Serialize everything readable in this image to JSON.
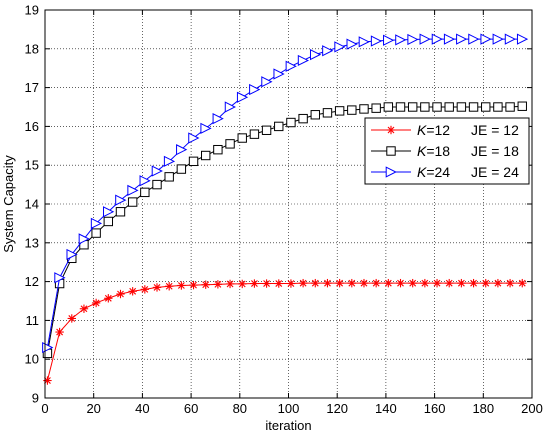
{
  "chart_data": {
    "type": "line",
    "title": "",
    "xlabel": "iteration",
    "ylabel": "System Capacity",
    "xlim": [
      0,
      200
    ],
    "ylim": [
      9,
      19
    ],
    "xticks": [
      0,
      20,
      40,
      60,
      80,
      100,
      120,
      140,
      160,
      180,
      200
    ],
    "yticks": [
      9,
      10,
      11,
      12,
      13,
      14,
      15,
      16,
      17,
      18,
      19
    ],
    "grid": "on, dotted",
    "legend_position": "right",
    "series": [
      {
        "name": "K=12",
        "legend_k": "K",
        "legend_eq": "=12",
        "legend_je": "JE = 12",
        "color": "#ff0000",
        "marker": "star",
        "x": [
          1,
          6,
          11,
          16,
          21,
          26,
          31,
          36,
          41,
          46,
          51,
          56,
          61,
          66,
          71,
          76,
          81,
          86,
          91,
          96,
          101,
          106,
          111,
          116,
          121,
          126,
          131,
          136,
          141,
          146,
          151,
          156,
          161,
          166,
          171,
          176,
          181,
          186,
          191,
          196
        ],
        "y": [
          9.45,
          10.7,
          11.05,
          11.3,
          11.45,
          11.57,
          11.68,
          11.75,
          11.8,
          11.85,
          11.88,
          11.9,
          11.91,
          11.92,
          11.93,
          11.94,
          11.94,
          11.95,
          11.95,
          11.95,
          11.95,
          11.96,
          11.96,
          11.96,
          11.96,
          11.96,
          11.96,
          11.96,
          11.96,
          11.96,
          11.96,
          11.96,
          11.96,
          11.96,
          11.96,
          11.96,
          11.96,
          11.96,
          11.96,
          11.96
        ]
      },
      {
        "name": "K=18",
        "legend_k": "K",
        "legend_eq": "=18",
        "legend_je": "JE = 18",
        "color": "#000000",
        "marker": "square",
        "x": [
          1,
          6,
          11,
          16,
          21,
          26,
          31,
          36,
          41,
          46,
          51,
          56,
          61,
          66,
          71,
          76,
          81,
          86,
          91,
          96,
          101,
          106,
          111,
          116,
          121,
          126,
          131,
          136,
          141,
          146,
          151,
          156,
          161,
          166,
          171,
          176,
          181,
          186,
          191,
          196
        ],
        "y": [
          10.15,
          11.95,
          12.6,
          12.95,
          13.25,
          13.55,
          13.8,
          14.05,
          14.3,
          14.5,
          14.7,
          14.9,
          15.1,
          15.25,
          15.4,
          15.55,
          15.7,
          15.8,
          15.9,
          16.0,
          16.1,
          16.2,
          16.3,
          16.35,
          16.4,
          16.42,
          16.45,
          16.47,
          16.5,
          16.5,
          16.5,
          16.5,
          16.5,
          16.5,
          16.5,
          16.5,
          16.5,
          16.5,
          16.5,
          16.52
        ]
      },
      {
        "name": "K=24",
        "legend_k": "K",
        "legend_eq": "=24",
        "legend_je": "JE = 24",
        "color": "#0000ff",
        "marker": "triangle-right",
        "x": [
          1,
          6,
          11,
          16,
          21,
          26,
          31,
          36,
          41,
          46,
          51,
          56,
          61,
          66,
          71,
          76,
          81,
          86,
          91,
          96,
          101,
          106,
          111,
          116,
          121,
          126,
          131,
          136,
          141,
          146,
          151,
          156,
          161,
          166,
          171,
          176,
          181,
          186,
          191,
          196
        ],
        "y": [
          10.3,
          12.1,
          12.7,
          13.1,
          13.5,
          13.8,
          14.1,
          14.35,
          14.6,
          14.85,
          15.1,
          15.4,
          15.7,
          15.95,
          16.2,
          16.5,
          16.75,
          16.95,
          17.15,
          17.35,
          17.55,
          17.7,
          17.85,
          17.95,
          18.05,
          18.12,
          18.18,
          18.2,
          18.22,
          18.23,
          18.24,
          18.25,
          18.25,
          18.25,
          18.25,
          18.25,
          18.25,
          18.25,
          18.25,
          18.25
        ]
      }
    ]
  }
}
